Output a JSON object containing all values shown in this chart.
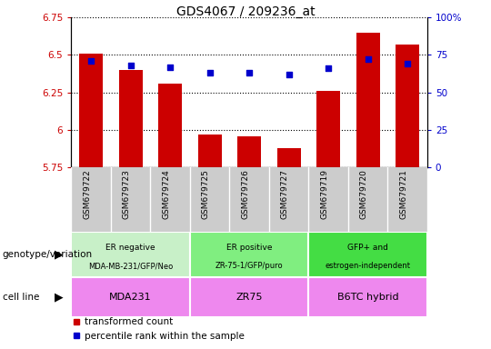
{
  "title": "GDS4067 / 209236_at",
  "samples": [
    "GSM679722",
    "GSM679723",
    "GSM679724",
    "GSM679725",
    "GSM679726",
    "GSM679727",
    "GSM679719",
    "GSM679720",
    "GSM679721"
  ],
  "transformed_counts": [
    6.51,
    6.4,
    6.31,
    5.97,
    5.96,
    5.88,
    6.26,
    6.65,
    6.57
  ],
  "percentile_ranks": [
    71,
    68,
    67,
    63,
    63,
    62,
    66,
    72,
    69
  ],
  "ylim_left": [
    5.75,
    6.75
  ],
  "ylim_right": [
    0,
    100
  ],
  "yticks_left": [
    5.75,
    6.0,
    6.25,
    6.5,
    6.75
  ],
  "yticks_right": [
    0,
    25,
    50,
    75,
    100
  ],
  "ytick_labels_left": [
    "5.75",
    "6",
    "6.25",
    "6.5",
    "6.75"
  ],
  "ytick_labels_right": [
    "0",
    "25",
    "50",
    "75",
    "100%"
  ],
  "bar_color": "#cc0000",
  "dot_color": "#0000cc",
  "geno_colors": [
    "#c8f0c8",
    "#80ee80",
    "#44dd44"
  ],
  "geno_labels_line1": [
    "ER negative",
    "ER positive",
    "GFP+ and"
  ],
  "geno_labels_line2": [
    "MDA-MB-231/GFP/Neo",
    "ZR-75-1/GFP/puro",
    "estrogen-independent"
  ],
  "geno_ranges": [
    [
      0,
      3
    ],
    [
      3,
      6
    ],
    [
      6,
      9
    ]
  ],
  "cell_color": "#ee88ee",
  "cell_labels": [
    "MDA231",
    "ZR75",
    "B6TC hybrid"
  ],
  "cell_ranges": [
    [
      0,
      3
    ],
    [
      3,
      6
    ],
    [
      6,
      9
    ]
  ],
  "genotype_label": "genotype/variation",
  "cell_line_label": "cell line",
  "legend_items": [
    "transformed count",
    "percentile rank within the sample"
  ],
  "tick_label_color_left": "#cc0000",
  "tick_label_color_right": "#0000cc",
  "xticklabel_area_color": "#cccccc"
}
